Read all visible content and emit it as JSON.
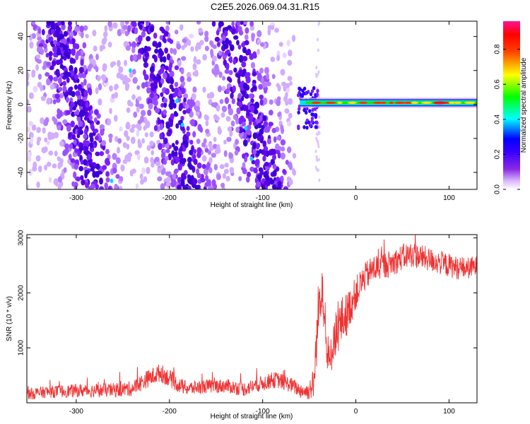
{
  "title": "C2E5.2026.069.04.31.R15",
  "chart_data": [
    {
      "type": "heatmap",
      "name": "spectrogram",
      "xlabel": "Height of straight line (km)",
      "ylabel": "Frequency (Hz)",
      "xlim": [
        -353,
        130
      ],
      "ylim": [
        -50,
        49
      ],
      "xticks": [
        -300,
        -200,
        -100,
        0,
        100
      ],
      "xtick_labels": [
        "-300",
        "-200",
        "-100",
        "0",
        "100"
      ],
      "yticks": [
        -40,
        -20,
        0,
        20,
        40
      ],
      "ytick_labels": [
        "-40",
        "-20",
        "0",
        "20",
        "40"
      ],
      "colorbar": {
        "label": "Normalized spectral amplitude",
        "range": [
          0,
          0.96
        ],
        "ticks": [
          0.0,
          0.2,
          0.4,
          0.6,
          0.8
        ],
        "tick_labels": [
          "0.0",
          "0.2",
          "0.4",
          "0.6",
          "0.8"
        ],
        "colormap": [
          "#ffffff",
          "#b27cff",
          "#6a00ff",
          "#0000ff",
          "#00ffff",
          "#00ff00",
          "#ffff00",
          "#ff0000",
          "#ff1493"
        ]
      },
      "features": [
        {
          "label": "scattered noise band 1",
          "x_center": -300,
          "slope_km_per_hz": -0.45
        },
        {
          "label": "scattered noise band 2",
          "x_center": -200,
          "slope_km_per_hz": -0.5
        },
        {
          "label": "scattered noise band 3",
          "x_center": -115,
          "slope_km_per_hz": -0.45
        },
        {
          "label": "dense region edge",
          "x": -65
        },
        {
          "label": "line signal",
          "x_start": -60,
          "x_end": 130,
          "frequency_hz": 1,
          "peak_amplitude": 0.9,
          "peak_x": 90
        }
      ]
    },
    {
      "type": "line",
      "name": "snr",
      "xlabel": "Height of straight line (km)",
      "ylabel": "SNR (10 * v/v)",
      "xlim": [
        -353,
        130
      ],
      "ylim": [
        0,
        3060
      ],
      "xticks": [
        -300,
        -200,
        -100,
        0,
        100
      ],
      "xtick_labels": [
        "-300",
        "-200",
        "-100",
        "0",
        "100"
      ],
      "yticks": [
        1000,
        2000,
        3000
      ],
      "ytick_labels": [
        "1000",
        "2000",
        "3000"
      ],
      "color": "#ee3333",
      "series": [
        {
          "name": "SNR",
          "x": [
            -353,
            -330,
            -300,
            -260,
            -240,
            -225,
            -210,
            -200,
            -190,
            -180,
            -160,
            -140,
            -120,
            -100,
            -85,
            -70,
            -60,
            -52,
            -45,
            -40,
            -36,
            -32,
            -28,
            -24,
            -20,
            -15,
            -10,
            -5,
            0,
            10,
            20,
            30,
            40,
            50,
            60,
            70,
            80,
            90,
            100,
            110,
            120,
            130
          ],
          "y": [
            160,
            200,
            220,
            230,
            260,
            420,
            550,
            450,
            320,
            260,
            300,
            310,
            250,
            360,
            420,
            330,
            230,
            200,
            350,
            1700,
            2300,
            1000,
            650,
            1200,
            1300,
            1500,
            1600,
            1800,
            2000,
            2300,
            2450,
            2500,
            2550,
            2650,
            2700,
            2650,
            2600,
            2550,
            2500,
            2450,
            2450,
            2480
          ],
          "noise": [
            110,
            110,
            120,
            130,
            140,
            160,
            170,
            160,
            140,
            130,
            130,
            130,
            130,
            140,
            150,
            140,
            140,
            150,
            300,
            600,
            500,
            450,
            350,
            400,
            450,
            450,
            400,
            350,
            300,
            260,
            260,
            250,
            240,
            240,
            240,
            230,
            220,
            220,
            220,
            210,
            200,
            200
          ]
        }
      ]
    }
  ]
}
